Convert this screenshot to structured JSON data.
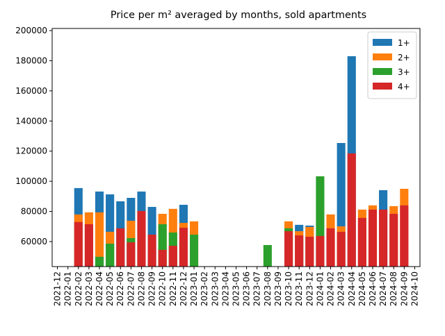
{
  "chart_data": {
    "type": "bar",
    "title": "Price per m² averaged by months, sold apartments",
    "categories": [
      "2021-12",
      "2022-01",
      "2022-02",
      "2022-03",
      "2022-04",
      "2022-05",
      "2022-06",
      "2022-07",
      "2022-08",
      "2022-09",
      "2022-10",
      "2022-11",
      "2022-12",
      "2023-01",
      "2023-02",
      "2023-03",
      "2023-04",
      "2023-05",
      "2023-06",
      "2023-07",
      "2023-08",
      "2023-09",
      "2023-10",
      "2023-11",
      "2023-12",
      "2024-01",
      "2024-02",
      "2024-03",
      "2024-04",
      "2024-05",
      "2024-06",
      "2024-07",
      "2024-08",
      "2024-09",
      "2024-10"
    ],
    "series": [
      {
        "name": "1+",
        "color": "#1f77b4",
        "values": [
          null,
          null,
          95500,
          null,
          93200,
          91300,
          86700,
          89000,
          93200,
          83000,
          null,
          null,
          84400,
          null,
          null,
          null,
          null,
          null,
          null,
          null,
          null,
          null,
          null,
          71100,
          70600,
          null,
          null,
          125400,
          183000,
          null,
          null,
          94100,
          null,
          null,
          null
        ]
      },
      {
        "name": "2+",
        "color": "#ff7f0e",
        "values": [
          null,
          null,
          78000,
          79400,
          79400,
          66500,
          null,
          73800,
          null,
          null,
          78400,
          81700,
          72400,
          73400,
          null,
          null,
          null,
          null,
          null,
          null,
          null,
          null,
          73400,
          66900,
          69700,
          null,
          78000,
          70100,
          null,
          81200,
          84000,
          null,
          83500,
          95000,
          null
        ]
      },
      {
        "name": "3+",
        "color": "#2ca02c",
        "values": [
          null,
          null,
          null,
          null,
          49900,
          58600,
          null,
          62300,
          null,
          null,
          71500,
          66000,
          null,
          64600,
          null,
          null,
          null,
          null,
          null,
          null,
          57700,
          null,
          68800,
          null,
          null,
          103300,
          null,
          null,
          null,
          null,
          null,
          null,
          null,
          null,
          null
        ]
      },
      {
        "name": "4+",
        "color": "#d62728",
        "values": [
          null,
          null,
          73000,
          71500,
          null,
          null,
          68800,
          59500,
          80300,
          64600,
          54500,
          57200,
          69200,
          null,
          null,
          null,
          null,
          null,
          null,
          null,
          null,
          null,
          66900,
          64100,
          63200,
          63700,
          68800,
          66500,
          118500,
          75700,
          81200,
          81200,
          78400,
          84000,
          null
        ]
      }
    ],
    "ylim": [
      43400,
      201400
    ],
    "yticks": [
      60000,
      80000,
      100000,
      120000,
      140000,
      160000,
      180000,
      200000
    ],
    "legend": "upper right"
  }
}
